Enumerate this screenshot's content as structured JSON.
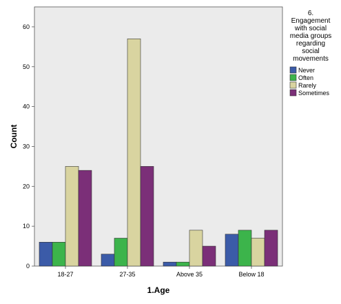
{
  "chart_data": {
    "type": "bar",
    "categories": [
      "18-27",
      "27-35",
      "Above 35",
      "Below 18"
    ],
    "series": [
      {
        "name": "Never",
        "values": [
          6,
          3,
          1,
          8
        ],
        "color": "#3b5ba8"
      },
      {
        "name": "Often",
        "values": [
          6,
          7,
          1,
          9
        ],
        "color": "#3cb44b"
      },
      {
        "name": "Rarely",
        "values": [
          25,
          57,
          9,
          7
        ],
        "color": "#d9d4a0"
      },
      {
        "name": "Sometimes",
        "values": [
          24,
          25,
          5,
          9
        ],
        "color": "#7b2f78"
      }
    ],
    "xlabel": "1.Age",
    "ylabel": "Count",
    "ylim": [
      0,
      65
    ],
    "yticks": [
      "0",
      "10",
      "20",
      "30",
      "40",
      "50",
      "60"
    ],
    "legend_title": [
      "6.",
      "Engagement",
      "with social",
      "media groups",
      "regarding",
      "social",
      "movements"
    ],
    "legend_position": "right",
    "plot_background": "#ebebeb",
    "grid": false
  }
}
